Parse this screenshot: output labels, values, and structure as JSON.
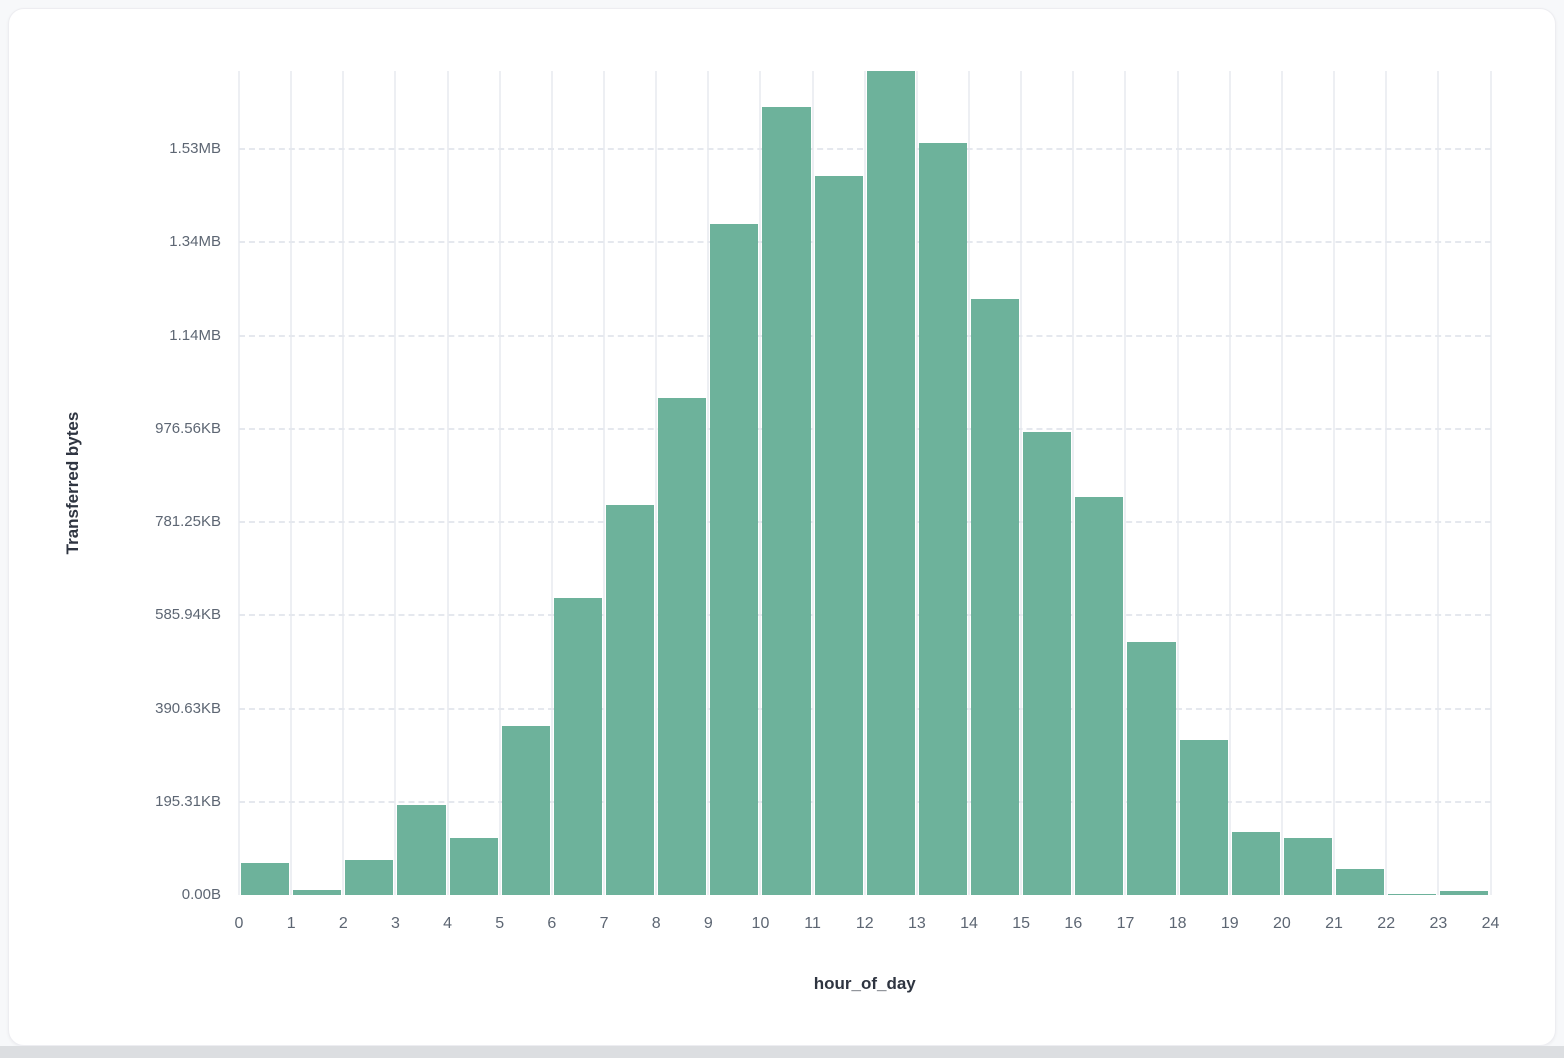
{
  "page": {
    "background_color": "#f7f8fa",
    "card_background_color": "#ffffff",
    "bottom_strip_color": "#dcdee1"
  },
  "chart_data": {
    "type": "bar",
    "title": "",
    "xlabel": "hour_of_day",
    "ylabel": "Transferred bytes",
    "legend_position": "none",
    "bar_color": "#6db29b",
    "grid": {
      "vertical": "solid",
      "horizontal": "dashed"
    },
    "xlim": [
      0,
      24
    ],
    "ylim_bytes": [
      0,
      1767000
    ],
    "x_tick_labels": [
      "0",
      "1",
      "2",
      "3",
      "4",
      "5",
      "6",
      "7",
      "8",
      "9",
      "10",
      "11",
      "12",
      "13",
      "14",
      "15",
      "16",
      "17",
      "18",
      "19",
      "20",
      "21",
      "22",
      "23",
      "24"
    ],
    "y_ticks": [
      {
        "bytes": 0,
        "label": "0.00B"
      },
      {
        "bytes": 200000,
        "label": "195.31KB"
      },
      {
        "bytes": 400000,
        "label": "390.63KB"
      },
      {
        "bytes": 600000,
        "label": "585.94KB"
      },
      {
        "bytes": 800000,
        "label": "781.25KB"
      },
      {
        "bytes": 1000000,
        "label": "976.56KB"
      },
      {
        "bytes": 1200000,
        "label": "1.14MB"
      },
      {
        "bytes": 1400000,
        "label": "1.34MB"
      },
      {
        "bytes": 1600000,
        "label": "1.53MB"
      }
    ],
    "categories_hour_bin_start": [
      0,
      1,
      2,
      3,
      4,
      5,
      6,
      7,
      8,
      9,
      10,
      11,
      12,
      13,
      14,
      15,
      16,
      17,
      18,
      19,
      20,
      21,
      22,
      23
    ],
    "values_bytes": [
      68600,
      11400,
      75700,
      193500,
      122200,
      362900,
      637900,
      836000,
      1065400,
      1440000,
      1689200,
      1542600,
      1767000,
      1613300,
      1278900,
      993800,
      854500,
      542300,
      332300,
      136300,
      122200,
      55700,
      2100,
      9200
    ]
  }
}
